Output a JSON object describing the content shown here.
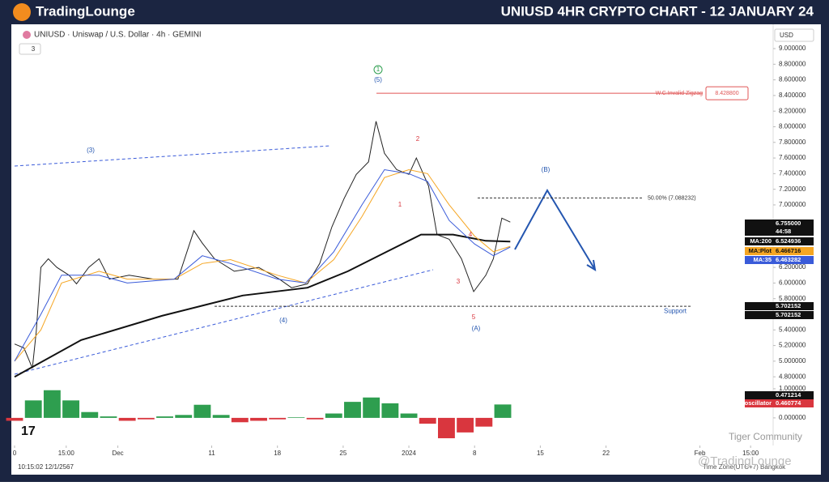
{
  "header": {
    "logo": "TradingLounge",
    "title": "UNIUSD 4HR CRYPTO CHART - 12 JANUARY 24"
  },
  "toolbar": {
    "symbol": "UNIUSD · Uniswap / U.S. Dollar · 4h · GEMINI",
    "indicators": "3",
    "currency": "USD"
  },
  "footer": {
    "clock": "10:15:02 12/1/2567",
    "timezone": "Time Zone(UTC+7) Bangkok",
    "watermark1": "Tiger Community",
    "watermark2": "@TradingLounge"
  },
  "chart_data": [
    {
      "type": "line",
      "ylim": [
        4.75,
        9.28
      ],
      "xlim": [
        0,
        80.8
      ],
      "yticks": [
        {
          "value": 9,
          "label": "9.000000"
        },
        {
          "value": 8.8,
          "label": "8.800000"
        },
        {
          "value": 8.6,
          "label": "8.600000"
        },
        {
          "value": 8.4,
          "label": "8.400000"
        },
        {
          "value": 8.2,
          "label": "8.200000"
        },
        {
          "value": 8,
          "label": "8.000000"
        },
        {
          "value": 7.8,
          "label": "7.800000"
        },
        {
          "value": 7.6,
          "label": "7.600000"
        },
        {
          "value": 7.4,
          "label": "7.400000"
        },
        {
          "value": 7.2,
          "label": "7.200000"
        },
        {
          "value": 7,
          "label": "7.000000"
        },
        {
          "value": 6.2,
          "label": "6.200000"
        },
        {
          "value": 6,
          "label": "6.000000"
        },
        {
          "value": 5.8,
          "label": "5.800000"
        },
        {
          "value": 5.4,
          "label": "5.400000"
        },
        {
          "value": 5.2,
          "label": "5.200000"
        },
        {
          "value": 5,
          "label": "5.000000"
        },
        {
          "value": 4.8,
          "label": "4.800000"
        }
      ],
      "xticks": [
        0,
        {
          "value": 5.5,
          "label": "15:00"
        },
        {
          "value": 11,
          "label": "Dec"
        },
        {
          "value": 21,
          "label": "11"
        },
        {
          "value": 28,
          "label": "18"
        },
        {
          "value": 35,
          "label": "25"
        },
        {
          "value": 42,
          "label": "2024"
        },
        {
          "value": 49,
          "label": "8"
        },
        {
          "value": 56,
          "label": "15"
        },
        {
          "value": 63,
          "label": "22"
        },
        {
          "value": 73,
          "label": "Feb"
        },
        {
          "value": 78.4,
          "label": "15:00"
        }
      ],
      "series": [
        {
          "color": "#222222",
          "x": [
            0,
            1.0,
            1.9,
            2.3,
            2.8,
            3.6,
            4.5,
            5.8,
            6.6,
            7.9,
            9.0,
            10.1,
            12.2,
            14.8,
            17.4,
            19.1,
            20.0,
            21.3,
            23.4,
            26.0,
            28.2,
            29.5,
            31.2,
            32.5,
            33.8,
            35.1,
            36.4,
            37.7,
            38.5,
            39.4,
            40.7,
            42.0,
            42.8,
            44.1,
            45.0,
            46.3,
            47.6,
            48.9,
            50.2,
            51.0,
            51.9,
            52.8
          ],
          "values": [
            5.22,
            5.17,
            4.91,
            5.37,
            6.2,
            6.31,
            6.2,
            6.1,
            5.99,
            6.2,
            6.31,
            6.05,
            6.1,
            6.05,
            6.05,
            6.67,
            6.51,
            6.31,
            6.15,
            6.2,
            6.05,
            5.94,
            5.99,
            6.25,
            6.72,
            7.08,
            7.39,
            7.55,
            8.07,
            7.66,
            7.45,
            7.39,
            7.6,
            7.24,
            6.62,
            6.56,
            6.31,
            5.89,
            6.1,
            6.31,
            6.83,
            6.78
          ],
          "last_label": "6.755000",
          "countdown": "44:58"
        },
        {
          "name": "MA:200",
          "color": "#111111",
          "x": [
            0,
            7.1,
            15.7,
            24.3,
            31.2,
            35.5,
            39.8,
            43.3,
            46.7,
            50.2,
            52.8
          ],
          "values": [
            4.8,
            5.27,
            5.58,
            5.84,
            5.94,
            6.15,
            6.41,
            6.62,
            6.62,
            6.54,
            6.53
          ],
          "last_label": "6.524936"
        },
        {
          "name": "MA:Plot",
          "color": "#f5a623",
          "x": [
            0,
            2.8,
            5,
            9,
            12,
            17,
            20,
            23,
            28,
            31,
            34,
            37,
            39.4,
            42,
            44,
            46.3,
            49,
            51,
            52.8
          ],
          "values": [
            5.0,
            5.4,
            6.0,
            6.15,
            6.05,
            6.05,
            6.25,
            6.3,
            6.1,
            6.0,
            6.3,
            6.85,
            7.35,
            7.45,
            7.4,
            7.0,
            6.6,
            6.4,
            6.47
          ],
          "last_label": "6.466716"
        },
        {
          "name": "MA:35",
          "color": "#3a5bd9",
          "x": [
            0,
            2.8,
            5,
            9,
            12,
            17,
            20,
            23,
            28,
            31,
            34,
            37,
            39.4,
            42,
            44,
            46.3,
            49,
            51,
            52.8
          ],
          "values": [
            5.0,
            5.6,
            6.1,
            6.1,
            6.0,
            6.05,
            6.35,
            6.25,
            6.05,
            6.0,
            6.4,
            7.0,
            7.45,
            7.4,
            7.3,
            6.8,
            6.5,
            6.35,
            6.46
          ],
          "last_label": "6.463282"
        }
      ],
      "annotations": [
        "1",
        "(5)",
        "(3)",
        "(4)",
        "2",
        "1",
        "(B)",
        "4",
        "3",
        "5",
        "(A)"
      ],
      "levels": [
        {
          "name": "W.C.Invalid Zigzag",
          "value": 8.4288,
          "label": "8.428800"
        },
        {
          "name": "50.00% (7.088232)",
          "value": 7.088232
        },
        {
          "name": "Support",
          "value": 5.702152,
          "label": "5.702152"
        }
      ]
    },
    {
      "type": "bar",
      "name": "Wave oscillator",
      "ylim": [
        -0.81,
        1.11
      ],
      "yticks": [
        {
          "value": 1,
          "label": "1.000000"
        },
        {
          "value": 0,
          "label": "0.000000"
        }
      ],
      "x": [
        0,
        2,
        4,
        6,
        8,
        10,
        12,
        14,
        16,
        18,
        20,
        22,
        24,
        26,
        28,
        30,
        32,
        34,
        36,
        38,
        40,
        42,
        44,
        46,
        48,
        50,
        52
      ],
      "values": [
        -0.1,
        0.6,
        0.95,
        0.6,
        0.2,
        0.05,
        -0.1,
        -0.05,
        0.05,
        0.1,
        0.45,
        0.1,
        -0.15,
        -0.1,
        -0.05,
        0.02,
        -0.05,
        0.15,
        0.55,
        0.7,
        0.5,
        0.15,
        -0.2,
        -0.7,
        -0.5,
        -0.3,
        0.46
      ],
      "tags": [
        "0.471214",
        "0.460774"
      ],
      "positive_color": "#2e9e4f",
      "negative_color": "#d9363e"
    }
  ]
}
